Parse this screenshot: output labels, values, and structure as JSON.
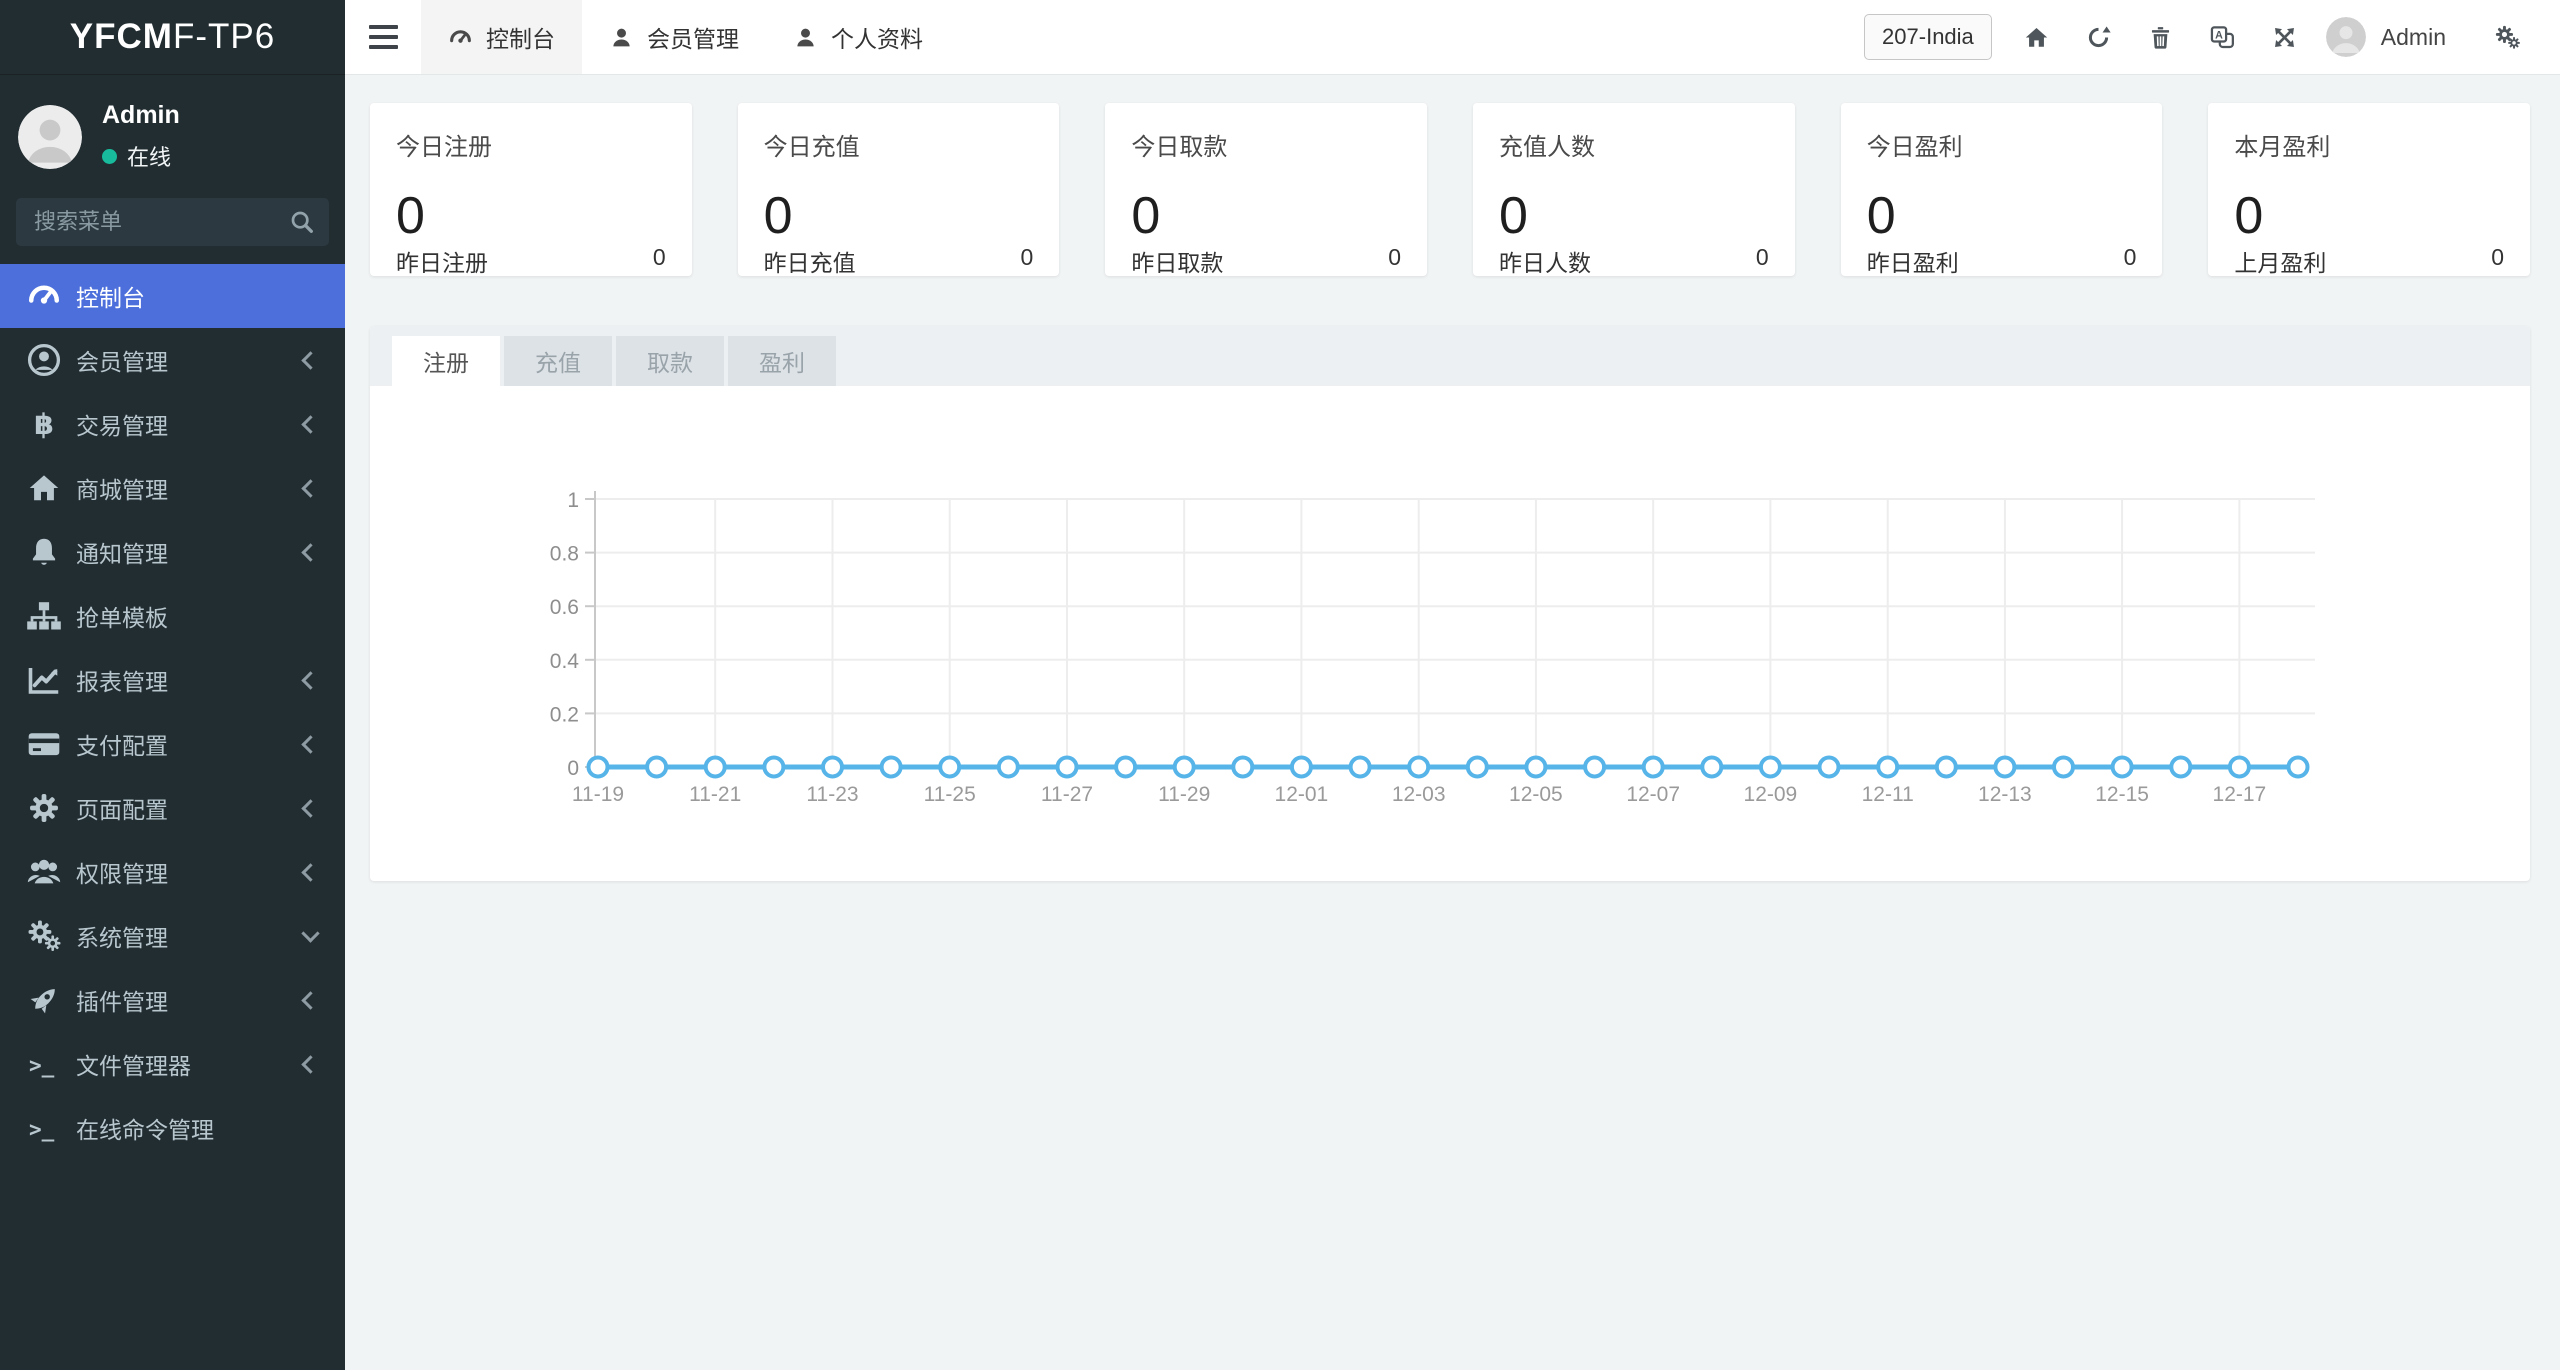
{
  "colors": {
    "accent": "#4c6fdb",
    "online": "#18bc9c",
    "chart_line": "#56b4e9",
    "sidebar_bg": "#222d32",
    "active_tab_bg": "#f4f4f4"
  },
  "brand": {
    "bold": "YFCM",
    "light": "F-TP6"
  },
  "user_panel": {
    "name": "Admin",
    "status": "在线"
  },
  "search": {
    "placeholder": "搜索菜单"
  },
  "sidebar": {
    "items": [
      {
        "key": "dashboard",
        "icon": "tachometer",
        "label": "控制台",
        "chevron": "none",
        "active": true
      },
      {
        "key": "members",
        "icon": "user-circle",
        "label": "会员管理",
        "chevron": "left"
      },
      {
        "key": "trades",
        "icon": "bitcoin",
        "label": "交易管理",
        "chevron": "left"
      },
      {
        "key": "mall",
        "icon": "home",
        "label": "商城管理",
        "chevron": "left"
      },
      {
        "key": "notifications",
        "icon": "bell",
        "label": "通知管理",
        "chevron": "left"
      },
      {
        "key": "grab-template",
        "icon": "sitemap",
        "label": "抢单模板",
        "chevron": "none"
      },
      {
        "key": "reports",
        "icon": "chart-line",
        "label": "报表管理",
        "chevron": "left"
      },
      {
        "key": "payment-config",
        "icon": "credit-card",
        "label": "支付配置",
        "chevron": "left"
      },
      {
        "key": "page-config",
        "icon": "gear",
        "label": "页面配置",
        "chevron": "left"
      },
      {
        "key": "permissions",
        "icon": "users",
        "label": "权限管理",
        "chevron": "left"
      },
      {
        "key": "system",
        "icon": "cogs",
        "label": "系统管理",
        "chevron": "down"
      },
      {
        "key": "plugins",
        "icon": "rocket",
        "label": "插件管理",
        "chevron": "left"
      },
      {
        "key": "file-manager",
        "icon": "terminal",
        "label": "文件管理器",
        "chevron": "left"
      },
      {
        "key": "online-command",
        "icon": "terminal",
        "label": "在线命令管理",
        "chevron": "none"
      }
    ]
  },
  "header": {
    "tabs": [
      {
        "key": "dashboard",
        "icon": "tachometer",
        "label": "控制台",
        "active": true
      },
      {
        "key": "members",
        "icon": "user",
        "label": "会员管理"
      },
      {
        "key": "profile",
        "icon": "user",
        "label": "个人资料"
      }
    ],
    "region_button": "207-India",
    "icon_buttons": [
      {
        "key": "home",
        "icon": "home"
      },
      {
        "key": "refresh",
        "icon": "refresh"
      },
      {
        "key": "trash",
        "icon": "trash"
      },
      {
        "key": "translate",
        "icon": "translate"
      },
      {
        "key": "expand",
        "icon": "expand"
      }
    ],
    "admin_label": "Admin",
    "settings_icon": "cogs"
  },
  "cards": [
    {
      "key": "today-register",
      "title": "今日注册",
      "value": "0",
      "foot_label": "昨日注册",
      "foot_value": "0"
    },
    {
      "key": "today-recharge",
      "title": "今日充值",
      "value": "0",
      "foot_label": "昨日充值",
      "foot_value": "0"
    },
    {
      "key": "today-withdraw",
      "title": "今日取款",
      "value": "0",
      "foot_label": "昨日取款",
      "foot_value": "0"
    },
    {
      "key": "recharge-users",
      "title": "充值人数",
      "value": "0",
      "foot_label": "昨日人数",
      "foot_value": "0"
    },
    {
      "key": "today-profit",
      "title": "今日盈利",
      "value": "0",
      "foot_label": "昨日盈利",
      "foot_value": "0"
    },
    {
      "key": "month-profit",
      "title": "本月盈利",
      "value": "0",
      "foot_label": "上月盈利",
      "foot_value": "0"
    }
  ],
  "chart_tabs": [
    {
      "key": "register",
      "label": "注册",
      "active": true
    },
    {
      "key": "recharge",
      "label": "充值"
    },
    {
      "key": "withdraw",
      "label": "取款"
    },
    {
      "key": "profit",
      "label": "盈利"
    }
  ],
  "chart_data": {
    "type": "line",
    "title": "",
    "x": [
      "11-19",
      "11-20",
      "11-21",
      "11-22",
      "11-23",
      "11-24",
      "11-25",
      "11-26",
      "11-27",
      "11-28",
      "11-29",
      "11-30",
      "12-01",
      "12-02",
      "12-03",
      "12-04",
      "12-05",
      "12-06",
      "12-07",
      "12-08",
      "12-09",
      "12-10",
      "12-11",
      "12-12",
      "12-13",
      "12-14",
      "12-15",
      "12-16",
      "12-17",
      "12-18"
    ],
    "series": [
      {
        "name": "注册",
        "values": [
          0,
          0,
          0,
          0,
          0,
          0,
          0,
          0,
          0,
          0,
          0,
          0,
          0,
          0,
          0,
          0,
          0,
          0,
          0,
          0,
          0,
          0,
          0,
          0,
          0,
          0,
          0,
          0,
          0,
          0
        ]
      }
    ],
    "ylim": [
      0,
      1
    ],
    "yticks": [
      0,
      0.2,
      0.4,
      0.6,
      0.8,
      1
    ],
    "xtick_every": 2,
    "grid": true,
    "legend_position": "none",
    "line_color": "#56b4e9",
    "point_fill": "#ffffff"
  }
}
